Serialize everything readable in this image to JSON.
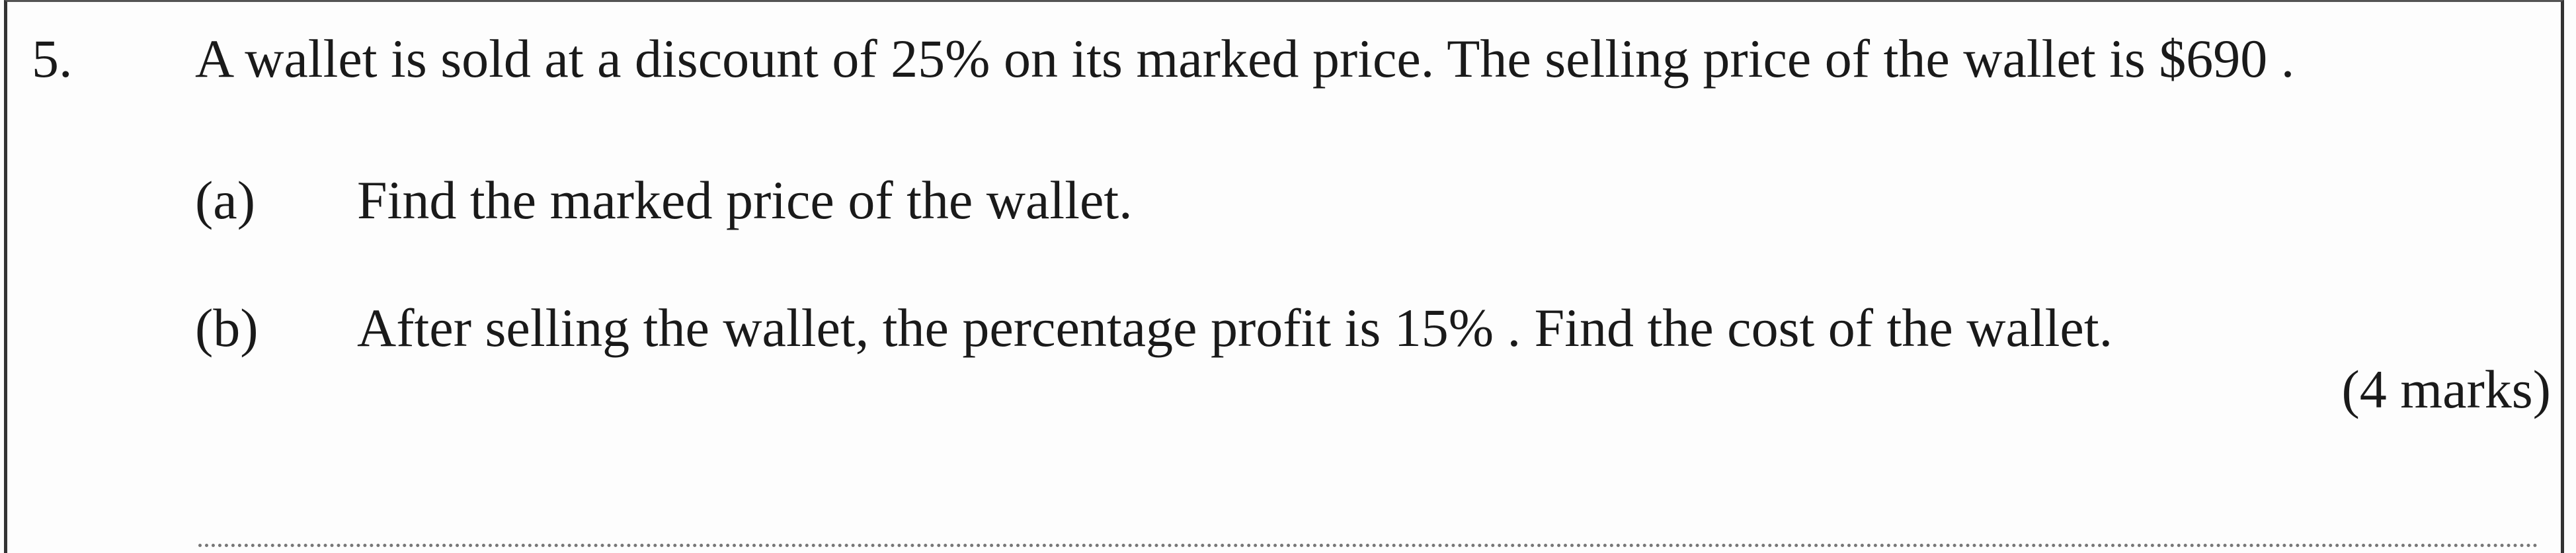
{
  "question": {
    "number": "5.",
    "stem": "A wallet is sold at a discount of  25%  on its marked price.  The selling price of the wallet is  $690 .",
    "parts": [
      {
        "label": "(a)",
        "text": "Find the marked price of the wallet."
      },
      {
        "label": "(b)",
        "text": "After selling the wallet, the percentage profit is  15% .  Find the cost of the wallet."
      }
    ],
    "marks": "(4 marks)"
  }
}
